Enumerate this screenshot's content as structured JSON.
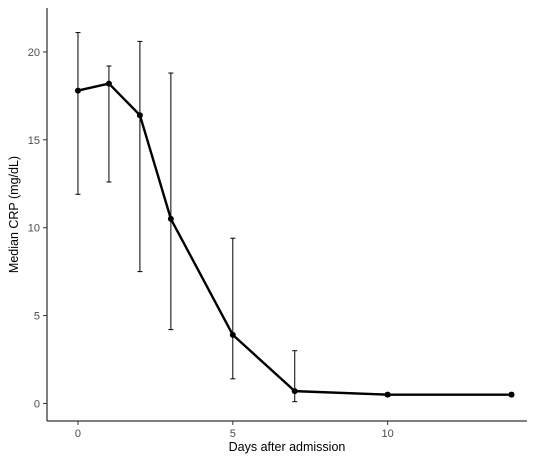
{
  "chart_data": {
    "type": "line",
    "title": "",
    "xlabel": "Days after admission",
    "ylabel": "Median CRP (mg/dL)",
    "xlim": [
      -1,
      14.5
    ],
    "ylim": [
      -1,
      22.5
    ],
    "x_ticks": [
      0,
      5,
      10
    ],
    "y_ticks": [
      0,
      5,
      10,
      15,
      20
    ],
    "x_tick_labels": [
      "0",
      "5",
      "10"
    ],
    "y_tick_labels": [
      "0",
      "5",
      "10",
      "15",
      "20"
    ],
    "grid": false,
    "legend": "none",
    "series": [
      {
        "x": [
          0,
          1,
          2,
          3,
          5,
          7,
          10,
          14
        ],
        "y": [
          17.8,
          18.2,
          16.4,
          10.5,
          3.9,
          0.7,
          0.5,
          0.5
        ],
        "lower": [
          11.9,
          12.6,
          7.5,
          4.2,
          1.4,
          0.1,
          0.4,
          0.4
        ],
        "upper": [
          21.1,
          19.2,
          20.6,
          18.8,
          9.4,
          3.0,
          0.6,
          0.6
        ],
        "color": "#000000"
      }
    ]
  }
}
